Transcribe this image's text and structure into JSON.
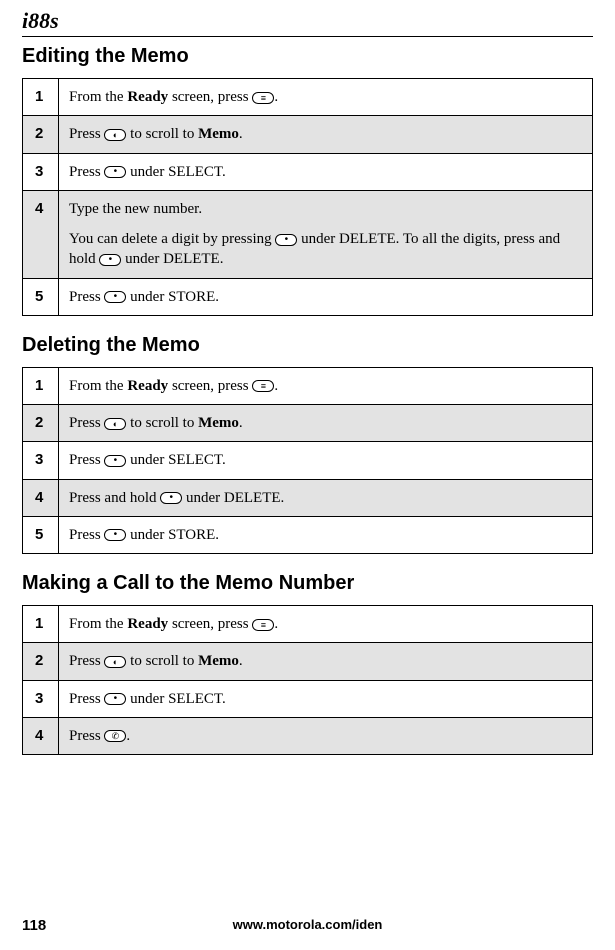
{
  "logo": "i88s",
  "sections": {
    "editing": {
      "title": "Editing the Memo",
      "rows": [
        {
          "num": "1",
          "parts": [
            "From the ",
            {
              "b": "Ready"
            },
            " screen, press ",
            {
              "key": "menu"
            },
            "."
          ],
          "shade": false
        },
        {
          "num": "2",
          "parts": [
            "Press ",
            {
              "key": "nav"
            },
            " to scroll to ",
            {
              "b": "Memo"
            },
            "."
          ],
          "shade": true
        },
        {
          "num": "3",
          "parts": [
            "Press ",
            {
              "key": "dot"
            },
            " under SELECT."
          ],
          "shade": false
        },
        {
          "num": "4",
          "parts": [
            "Type the new number."
          ],
          "extra": [
            "You can delete a digit by pressing ",
            {
              "key": "dot"
            },
            " under DELETE. To all the digits, press and hold ",
            {
              "key": "dot"
            },
            " under DELETE."
          ],
          "shade": true
        },
        {
          "num": "5",
          "parts": [
            "Press ",
            {
              "key": "dot"
            },
            " under STORE."
          ],
          "shade": false
        }
      ]
    },
    "deleting": {
      "title": "Deleting the Memo",
      "rows": [
        {
          "num": "1",
          "parts": [
            "From the ",
            {
              "b": "Ready"
            },
            " screen, press ",
            {
              "key": "menu"
            },
            "."
          ],
          "shade": false
        },
        {
          "num": "2",
          "parts": [
            "Press ",
            {
              "key": "nav"
            },
            " to scroll to ",
            {
              "b": "Memo"
            },
            "."
          ],
          "shade": true
        },
        {
          "num": "3",
          "parts": [
            "Press ",
            {
              "key": "dot"
            },
            " under SELECT."
          ],
          "shade": false
        },
        {
          "num": "4",
          "parts": [
            "Press and hold ",
            {
              "key": "dot"
            },
            " under DELETE."
          ],
          "shade": true
        },
        {
          "num": "5",
          "parts": [
            "Press ",
            {
              "key": "dot"
            },
            " under STORE."
          ],
          "shade": false
        }
      ]
    },
    "calling": {
      "title": "Making a Call to the Memo Number",
      "rows": [
        {
          "num": "1",
          "parts": [
            "From the ",
            {
              "b": "Ready"
            },
            " screen, press ",
            {
              "key": "menu"
            },
            "."
          ],
          "shade": false
        },
        {
          "num": "2",
          "parts": [
            "Press ",
            {
              "key": "nav"
            },
            " to scroll to ",
            {
              "b": "Memo"
            },
            "."
          ],
          "shade": true
        },
        {
          "num": "3",
          "parts": [
            "Press ",
            {
              "key": "dot"
            },
            " under SELECT."
          ],
          "shade": false
        },
        {
          "num": "4",
          "parts": [
            "Press ",
            {
              "key": "phone"
            },
            "."
          ],
          "shade": true
        }
      ]
    }
  },
  "footer": {
    "url": "www.motorola.com/iden",
    "page": "118"
  }
}
